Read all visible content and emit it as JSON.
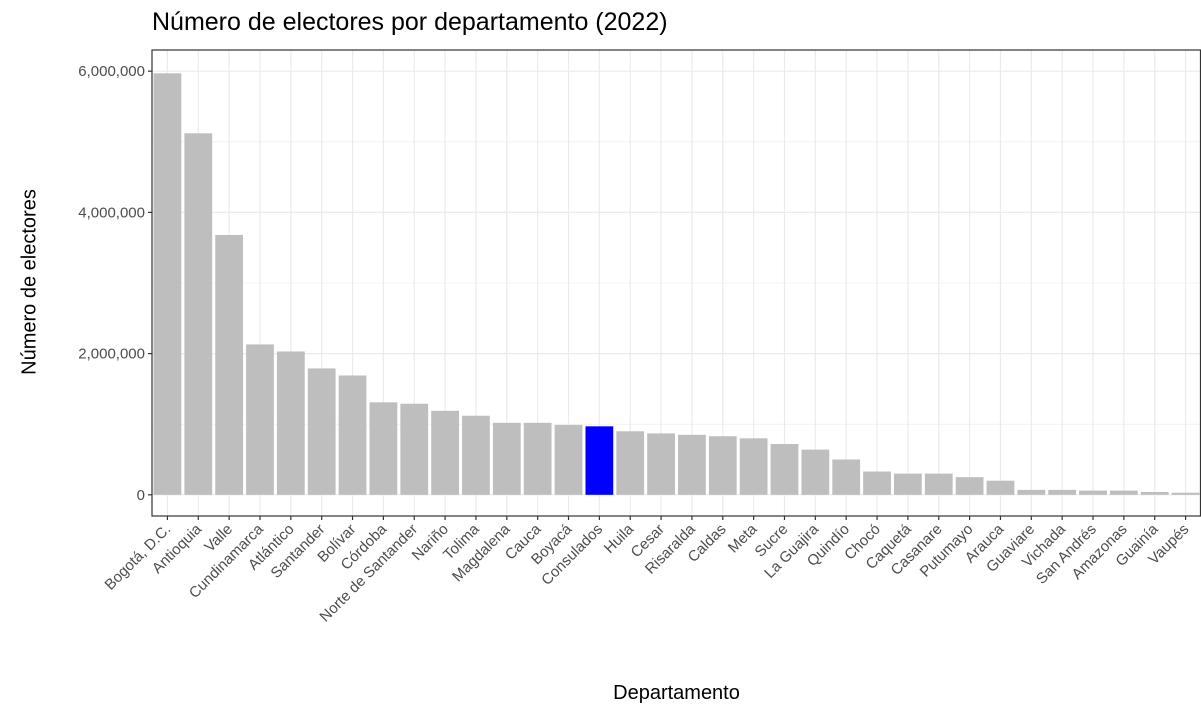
{
  "chart_data": {
    "type": "bar",
    "title": "Número de electores por departamento (2022)",
    "xlabel": "Departamento",
    "ylabel": "Número de electores",
    "ylim": [
      -300000,
      6300000
    ],
    "yticks": [
      0,
      2000000,
      4000000,
      6000000
    ],
    "ytick_labels": [
      "0",
      "2,000,000",
      "4,000,000",
      "6,000,000"
    ],
    "grid": true,
    "colors": {
      "default": "#bebebe",
      "highlight": "#0000ff",
      "grid": "#ebebeb",
      "panel_border": "#333333"
    },
    "highlight": "Consulados",
    "categories": [
      "Bogotá, D.C.",
      "Antioquia",
      "Valle",
      "Cundinamarca",
      "Atlántico",
      "Santander",
      "Bolívar",
      "Córdoba",
      "Norte de Santander",
      "Nariño",
      "Tolima",
      "Magdalena",
      "Cauca",
      "Boyacá",
      "Consulados",
      "Huila",
      "Cesar",
      "Risaralda",
      "Caldas",
      "Meta",
      "Sucre",
      "La Guajira",
      "Quindío",
      "Chocó",
      "Caquetá",
      "Casanare",
      "Putumayo",
      "Arauca",
      "Guaviare",
      "Vichada",
      "San Andrés",
      "Amazonas",
      "Guainía",
      "Vaupés"
    ],
    "values": [
      5970000,
      5120000,
      3680000,
      2130000,
      2030000,
      1790000,
      1690000,
      1310000,
      1290000,
      1190000,
      1120000,
      1020000,
      1020000,
      990000,
      970000,
      900000,
      870000,
      850000,
      830000,
      800000,
      720000,
      640000,
      500000,
      330000,
      300000,
      300000,
      250000,
      200000,
      70000,
      70000,
      60000,
      60000,
      40000,
      30000
    ]
  }
}
